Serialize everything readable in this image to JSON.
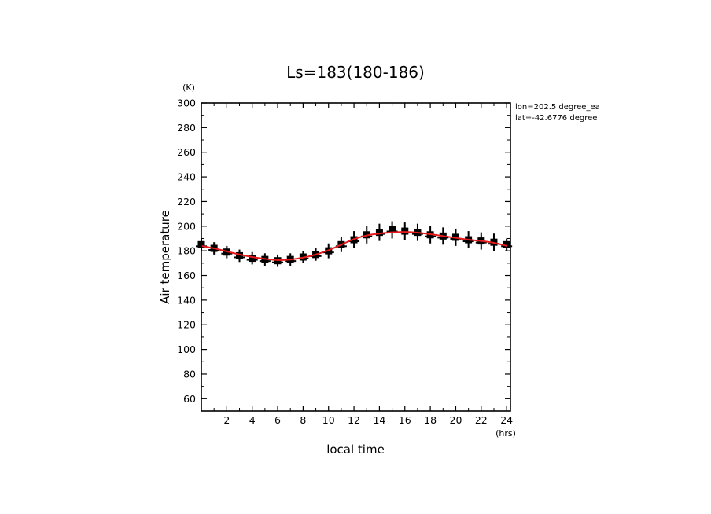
{
  "chart_data": {
    "type": "scatter",
    "title": "Ls=183(180-186)",
    "xlabel": "local time",
    "xunit": "(hrs)",
    "ylabel": "Air temperature",
    "yunit": "(K)",
    "xlim": [
      0,
      24.3
    ],
    "ylim": [
      50,
      300
    ],
    "xticks": [
      2,
      4,
      6,
      8,
      10,
      12,
      14,
      16,
      18,
      20,
      22,
      24
    ],
    "yticks": [
      60,
      80,
      100,
      120,
      140,
      160,
      180,
      200,
      220,
      240,
      260,
      280,
      300
    ],
    "annotations": [
      "lon=202.5 degree_ea",
      "lat=-42.6776 degree"
    ],
    "grid": false,
    "colors": {
      "fit": "#e41a1c",
      "points": "#000000"
    },
    "series": [
      {
        "kind": "observations",
        "x": [
          0.0,
          1.0,
          2.0,
          3.0,
          4.0,
          5.0,
          6.0,
          7.0,
          8.0,
          9.0,
          10.0,
          11.0,
          12.0,
          13.0,
          14.0,
          15.0,
          16.0,
          17.0,
          18.0,
          19.0,
          20.0,
          21.0,
          22.0,
          23.0,
          24.0
        ],
        "y": [
          185,
          182,
          179,
          176,
          174,
          173,
          172,
          173,
          175,
          177,
          180,
          185,
          189,
          193,
          195,
          197,
          196,
          195,
          193,
          192,
          191,
          189,
          188,
          187,
          185
        ],
        "err": [
          3,
          3,
          3,
          3,
          3,
          3,
          3,
          3,
          3,
          3,
          4,
          4,
          5,
          5,
          5,
          5,
          5,
          5,
          5,
          5,
          5,
          5,
          5,
          5,
          3
        ]
      },
      {
        "kind": "fit",
        "x": [
          0,
          1,
          2,
          3,
          4,
          5,
          6,
          7,
          8,
          9,
          10,
          11,
          12,
          13,
          14,
          15,
          16,
          17,
          18,
          19,
          20,
          21,
          22,
          23,
          24
        ],
        "y": [
          184,
          182,
          179.5,
          177,
          175,
          173.5,
          172.5,
          173,
          174.5,
          177,
          180.5,
          185,
          189.5,
          192.5,
          194,
          195,
          195.3,
          194.8,
          193.5,
          192,
          190.5,
          189,
          188,
          186.5,
          184
        ]
      }
    ]
  }
}
